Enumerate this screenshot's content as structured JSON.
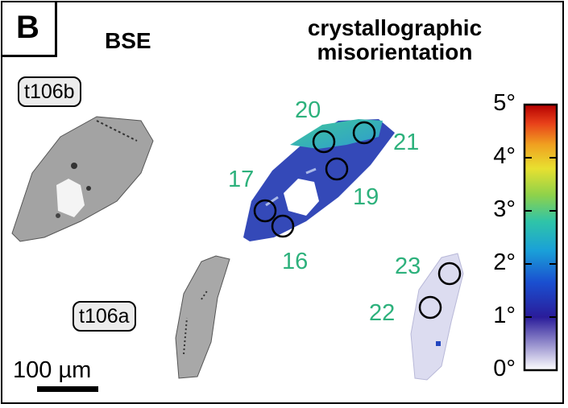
{
  "panel": {
    "label": "B"
  },
  "headings": {
    "bse": "BSE",
    "misorientation_line1": "crystallographic",
    "misorientation_line2": "misorientation"
  },
  "samples": {
    "upper": "t106b",
    "lower": "t106a"
  },
  "points": [
    "20",
    "21",
    "17",
    "19",
    "16",
    "23",
    "22"
  ],
  "colorbar": {
    "ticks": [
      "5°",
      "4°",
      "3°",
      "2°",
      "1°",
      "0°"
    ],
    "min": 0,
    "max": 5,
    "unit": "°",
    "colors": [
      "#ffffff",
      "#2a1c9a",
      "#1a4fd0",
      "#1aa0d8",
      "#2fc4a8",
      "#8fd24a",
      "#e8e030",
      "#f0a020",
      "#e8401a",
      "#b40000"
    ]
  },
  "scale_bar": {
    "label": "100 µm"
  }
}
